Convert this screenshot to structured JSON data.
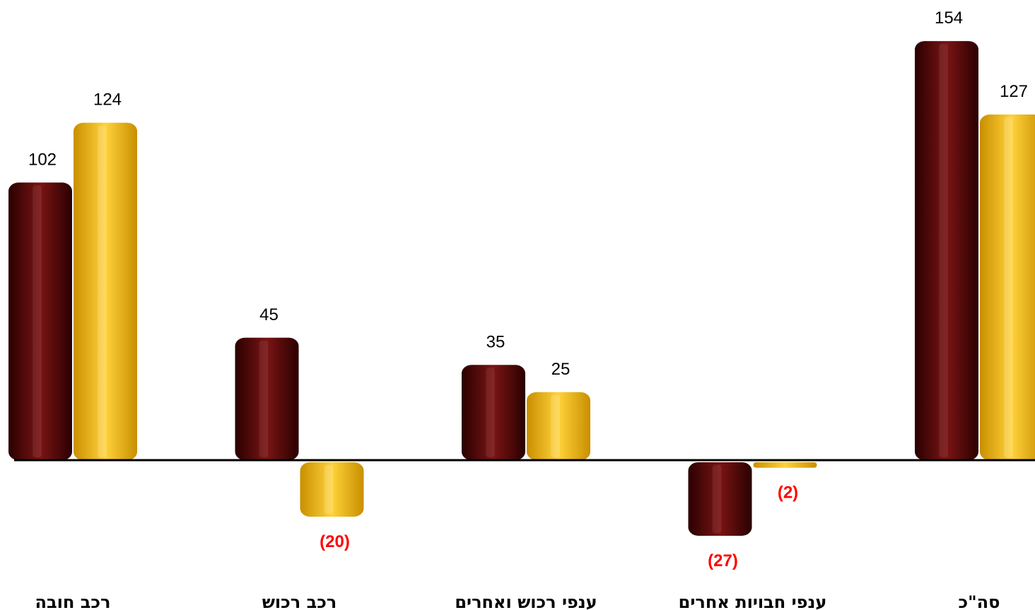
{
  "chart_data": {
    "type": "bar",
    "categories": [
      "רכב חובה",
      "רכב רכוש",
      "ענפי רכוש ואחרים",
      "ענפי חבויות אחרים",
      "סה\"כ"
    ],
    "series": [
      {
        "values": [
          102,
          45,
          35,
          -27,
          154
        ],
        "labels": [
          "102",
          "45",
          "35",
          "(27)",
          "154"
        ]
      },
      {
        "values": [
          124,
          -20,
          25,
          -2,
          127
        ],
        "labels": [
          "124",
          "(20)",
          "25",
          "(2)",
          "127"
        ]
      }
    ],
    "colors": {
      "series_1": "#5c0606",
      "series_2": "#f5b800",
      "negative_label": "#ff0000",
      "positive_label": "#000000",
      "axis": "#000000"
    },
    "title": "",
    "xlabel": "",
    "ylabel": "",
    "grid": false,
    "legend": "none"
  }
}
